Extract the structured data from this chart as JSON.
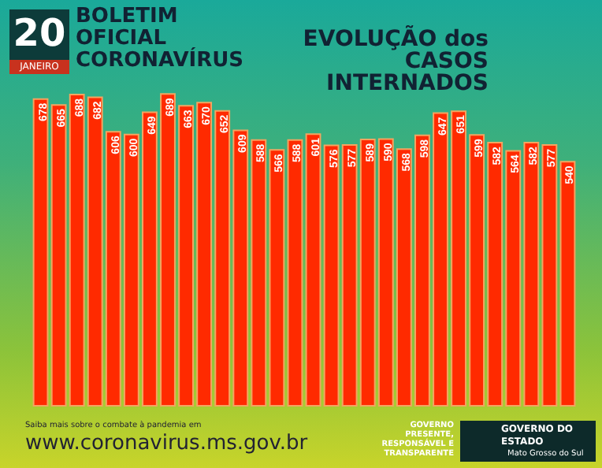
{
  "chart_data": {
    "type": "bar",
    "title": "BOLETIM OFICIAL CORONAVÍRUS",
    "subtitle": "EVOLUÇÃO dos CASOS INTERNADOS",
    "annotations": [
      "20",
      "JANEIRO",
      "Saiba mais sobre o combate à pandemia em",
      "www.coronavirus.ms.gov.br",
      "GOVERNO PRESENTE, RESPONSÁVEL E TRANSPARENTE",
      "GOVERNO DO ESTADO",
      "Mato Grosso do Sul"
    ],
    "categories": [
      null,
      null,
      null,
      null,
      null,
      null,
      null,
      null,
      null,
      null,
      null,
      null,
      null,
      null,
      null,
      null,
      null,
      null,
      null,
      null,
      null,
      null,
      null,
      null,
      null,
      null,
      null,
      null,
      null,
      null
    ],
    "values": [
      678,
      665,
      688,
      682,
      606,
      600,
      649,
      689,
      663,
      670,
      652,
      609,
      588,
      566,
      588,
      601,
      576,
      577,
      589,
      590,
      568,
      598,
      647,
      651,
      599,
      582,
      564,
      582,
      577,
      540
    ],
    "color": "#ff2a00",
    "data_labels": true
  }
}
